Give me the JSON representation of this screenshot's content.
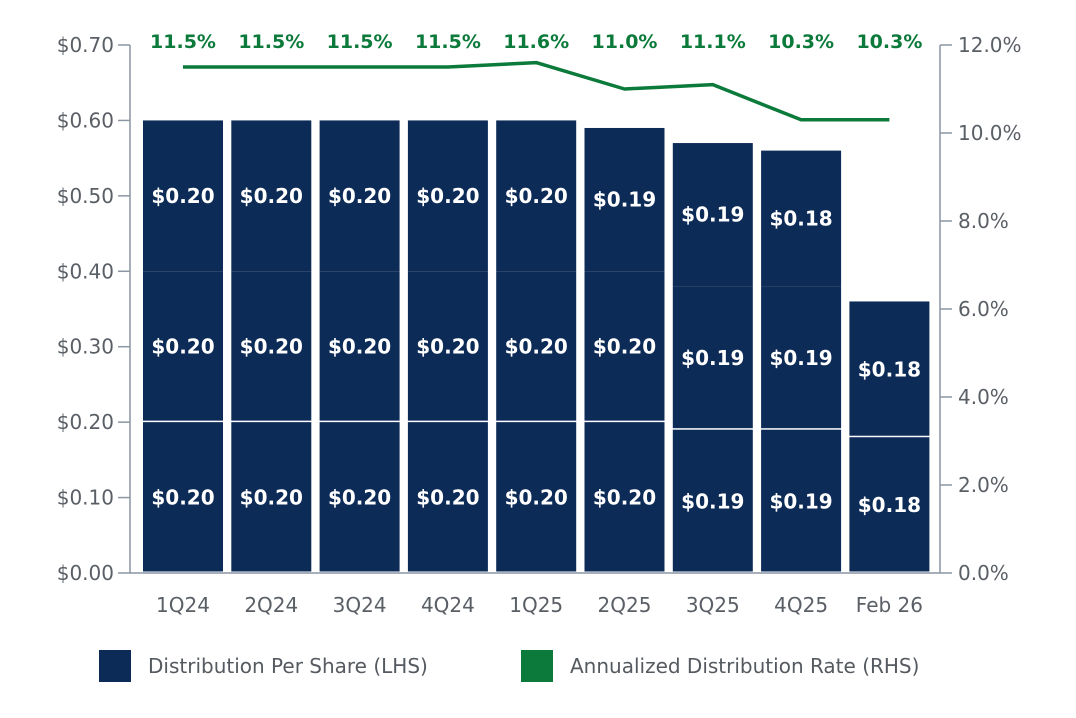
{
  "chart_data": {
    "type": "bar",
    "categories": [
      "1Q24",
      "2Q24",
      "3Q24",
      "4Q24",
      "1Q25",
      "2Q25",
      "3Q25",
      "4Q25",
      "Feb 26"
    ],
    "stacked": true,
    "series": [
      {
        "name": "Distribution Per Share (LHS)",
        "axis": "left",
        "type": "bar",
        "color": "#0d2b57",
        "segments": [
          [
            "$0.20",
            "$0.20",
            "$0.20",
            "$0.20",
            "$0.20",
            "$0.20",
            "$0.19",
            "$0.19",
            "$0.18"
          ],
          [
            "$0.20",
            "$0.20",
            "$0.20",
            "$0.20",
            "$0.20",
            "$0.20",
            "$0.19",
            "$0.19",
            "$0.18"
          ],
          [
            "$0.20",
            "$0.20",
            "$0.20",
            "$0.20",
            "$0.20",
            "$0.19",
            "$0.19",
            "$0.18",
            null
          ]
        ],
        "segment_values": [
          [
            0.2,
            0.2,
            0.2,
            0.2,
            0.2,
            0.2,
            0.19,
            0.19,
            0.18
          ],
          [
            0.2,
            0.2,
            0.2,
            0.2,
            0.2,
            0.2,
            0.19,
            0.19,
            0.18
          ],
          [
            0.2,
            0.2,
            0.2,
            0.2,
            0.2,
            0.19,
            0.19,
            0.18,
            0
          ]
        ]
      },
      {
        "name": "Annualized Distribution Rate (RHS)",
        "axis": "right",
        "type": "line",
        "color": "#0b7a3a",
        "values": [
          11.5,
          11.5,
          11.5,
          11.5,
          11.6,
          11.0,
          11.1,
          10.3,
          10.3
        ],
        "labels": [
          "11.5%",
          "11.5%",
          "11.5%",
          "11.5%",
          "11.6%",
          "11.0%",
          "11.1%",
          "10.3%",
          "10.3%"
        ]
      }
    ],
    "left_axis": {
      "ylim": [
        0,
        0.7
      ],
      "ticks": [
        "$0.00",
        "$0.10",
        "$0.20",
        "$0.30",
        "$0.40",
        "$0.50",
        "$0.60",
        "$0.70"
      ]
    },
    "right_axis": {
      "ylim": [
        0,
        12
      ],
      "ticks": [
        "0.0%",
        "2.0%",
        "4.0%",
        "6.0%",
        "8.0%",
        "10.0%",
        "12.0%"
      ]
    },
    "grid": false,
    "legend": {
      "placement": "bottom",
      "items": [
        "Distribution Per Share (LHS)",
        "Annualized Distribution Rate (RHS)"
      ]
    },
    "axis_color": "#8a96a3"
  }
}
